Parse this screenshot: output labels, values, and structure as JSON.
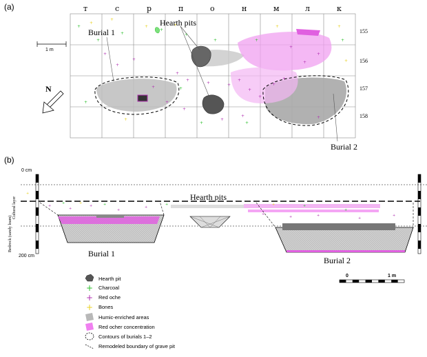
{
  "panel_a": {
    "label": "(a)",
    "columns": [
      "т",
      "с",
      "р",
      "п",
      "о",
      "н",
      "м",
      "л",
      "к"
    ],
    "rows": [
      "155",
      "156",
      "157",
      "158"
    ],
    "scale_label": "1  m",
    "north_label": "N",
    "labels": {
      "burial1": "Burial 1",
      "hearth": "Hearth pits",
      "burial2": "Burial 2"
    }
  },
  "panel_b": {
    "label": "(b)",
    "depth_top": "0 cm",
    "depth_bottom": "200 cm",
    "layer_cultural": "Cultural layer",
    "layer_bedrock": "Bedrock (sandy loam)",
    "hearth": "Hearth pits",
    "burial1": "Burial 1",
    "burial2": "Burial 2",
    "scale_start": "0",
    "scale_end": "1 m"
  },
  "legend": {
    "items": [
      {
        "label": "Hearth pit",
        "icon": "hearth-pit-swatch",
        "color": "#555555"
      },
      {
        "label": "Charcoal",
        "icon": "plus-marker",
        "color": "#2bbf2b"
      },
      {
        "label": "Red oche",
        "icon": "plus-marker",
        "color": "#b030b0"
      },
      {
        "label": "Bones",
        "icon": "plus-marker",
        "color": "#e8d020"
      },
      {
        "label": "Humic-enriched areas",
        "icon": "grey-swatch",
        "color": "#b8b8b8"
      },
      {
        "label": "Red ocher concentration",
        "icon": "pink-swatch",
        "color": "#f080f0"
      },
      {
        "label": "Contours of burials 1–2",
        "icon": "dashed-circle",
        "color": "#000000"
      },
      {
        "label": "Remodeled boundary of grave pit",
        "icon": "dashed-line",
        "color": "#000000"
      }
    ]
  }
}
